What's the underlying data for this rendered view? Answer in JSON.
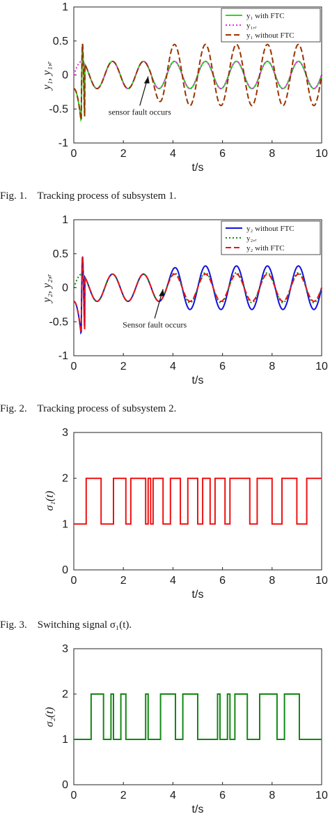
{
  "chart_data": [
    {
      "type": "line",
      "id": "fig1",
      "caption": "Fig. 1.    Tracking process of subsystem 1.",
      "xlabel": "t/s",
      "ylabel": "y₁, y₁,ᵣ",
      "xlim": [
        0,
        10
      ],
      "ylim": [
        -1,
        1
      ],
      "xticks": [
        "0",
        "2",
        "4",
        "6",
        "8",
        "10"
      ],
      "yticks": [
        "-1",
        "-0.5",
        "0",
        "0.5",
        "1"
      ],
      "legend_position": "top-right",
      "series": [
        {
          "name": "y₁ with FTC",
          "color": "#22dd22",
          "style": "solid",
          "amp": 0.2,
          "pre": 0.2,
          "startDelay": 0
        },
        {
          "name": "y₁,ᵣ",
          "color": "#ee22ee",
          "style": "dotted",
          "amp": 0.2,
          "pre": 0.2,
          "startDelay": 0
        },
        {
          "name": "y₁ without FTC",
          "color": "#993300",
          "style": "dashed",
          "amp": 0.45,
          "pre": 0.2,
          "startDelay": 0
        }
      ],
      "period": 1.25,
      "fault_time": 3.0,
      "annotation": "sensor fault occurs"
    },
    {
      "type": "line",
      "id": "fig2",
      "caption": "Fig. 2.    Tracking process of subsystem 2.",
      "xlabel": "t/s",
      "ylabel": "y₂, y₂,ᵣ",
      "xlim": [
        0,
        10
      ],
      "ylim": [
        -1,
        1
      ],
      "xticks": [
        "0",
        "2",
        "4",
        "6",
        "8",
        "10"
      ],
      "yticks": [
        "-1",
        "-0.5",
        "0",
        "0.5",
        "1"
      ],
      "legend_position": "top-right",
      "series": [
        {
          "name": "y₂ without FTC",
          "color": "#1111dd",
          "style": "solid",
          "amp": 0.32,
          "pre": 0.2
        },
        {
          "name": "y₂,ᵣ",
          "color": "#118811",
          "style": "dotted",
          "amp": 0.22,
          "pre": 0.2
        },
        {
          "name": "y₂ with FTC",
          "color": "#ee1111",
          "style": "dashed",
          "amp": 0.2,
          "pre": 0.2
        }
      ],
      "period": 1.25,
      "fault_time": 3.6,
      "annotation": "Sensor fault occurs"
    },
    {
      "type": "line",
      "id": "fig3",
      "caption": "Fig. 3.    Switching signal σ₁(t).",
      "xlabel": "t/s",
      "ylabel": "σ₁(t)",
      "xlim": [
        0,
        10
      ],
      "ylim": [
        0,
        3
      ],
      "xticks": [
        "0",
        "2",
        "4",
        "6",
        "8",
        "10"
      ],
      "yticks": [
        "0",
        "1",
        "2",
        "3"
      ],
      "color": "#ee1111",
      "switch_times": [
        0.5,
        1.1,
        1.6,
        2.1,
        2.3,
        2.9,
        3.0,
        3.1,
        3.2,
        3.6,
        3.9,
        4.3,
        4.6,
        5.0,
        5.2,
        5.5,
        5.7,
        6.1,
        6.3,
        7.1,
        7.4,
        8.0,
        8.4,
        9.0,
        9.4
      ],
      "start_value": 1
    },
    {
      "type": "line",
      "id": "fig4",
      "caption": "",
      "xlabel": "t/s",
      "ylabel": "σ₂(t)",
      "xlim": [
        0,
        10
      ],
      "ylim": [
        0,
        3
      ],
      "xticks": [
        "0",
        "2",
        "4",
        "6",
        "8",
        "10"
      ],
      "yticks": [
        "0",
        "1",
        "2",
        "3"
      ],
      "color": "#118811",
      "switch_times": [
        0.7,
        1.2,
        1.5,
        1.6,
        1.9,
        2.1,
        2.9,
        3.0,
        3.5,
        4.1,
        4.4,
        5.0,
        5.8,
        5.9,
        6.2,
        6.3,
        6.5,
        7.0,
        7.5,
        8.2,
        8.5,
        9.1
      ],
      "start_value": 1
    }
  ]
}
